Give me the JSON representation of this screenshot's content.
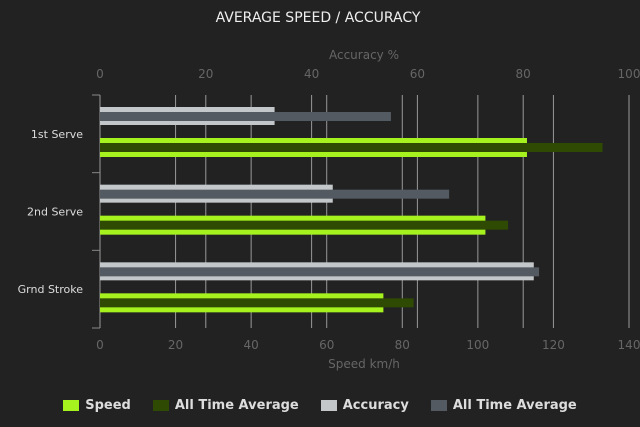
{
  "chart_data": {
    "type": "bar",
    "orientation": "horizontal",
    "title": "AVERAGE SPEED / ACCURACY",
    "categories": [
      "1st Serve",
      "2nd Serve",
      "Grnd Stroke"
    ],
    "top_axis": {
      "label": "Accuracy %",
      "range": [
        0,
        100
      ],
      "ticks": [
        0,
        20,
        40,
        60,
        80,
        100
      ]
    },
    "bottom_axis": {
      "label": "Speed km/h",
      "range": [
        0,
        140
      ],
      "ticks": [
        0,
        20,
        40,
        60,
        80,
        100,
        120,
        140
      ]
    },
    "grid": true,
    "legend_position": "bottom",
    "series": [
      {
        "name": "Speed",
        "axis": "speed",
        "color": "#a6f21e",
        "values": [
          113,
          102,
          75
        ]
      },
      {
        "name": "All Time Average",
        "axis": "speed",
        "color": "#2f4a02",
        "values": [
          133,
          108,
          83
        ]
      },
      {
        "name": "Accuracy",
        "axis": "accuracy",
        "color": "#c3c7c9",
        "values": [
          33,
          44,
          82
        ]
      },
      {
        "name": "All Time Average",
        "axis": "accuracy",
        "color": "#545a61",
        "values": [
          55,
          66,
          83
        ]
      }
    ]
  }
}
